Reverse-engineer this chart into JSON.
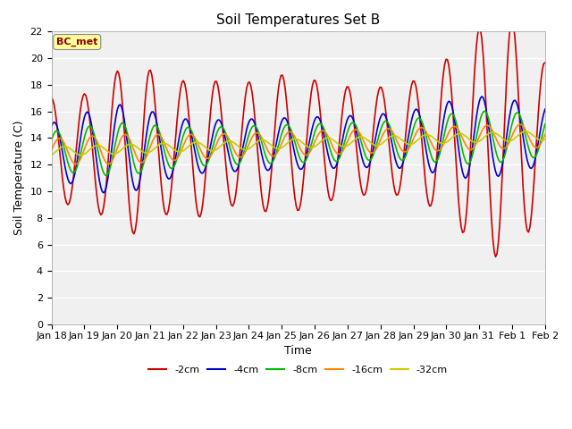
{
  "title": "Soil Temperatures Set B",
  "xlabel": "Time",
  "ylabel": "Soil Temperature (C)",
  "ylim": [
    0,
    22
  ],
  "yticks": [
    0,
    2,
    4,
    6,
    8,
    10,
    12,
    14,
    16,
    18,
    20,
    22
  ],
  "annotation": "BC_met",
  "annotation_color": "#8B0000",
  "annotation_bg": "#FFFF99",
  "fig_bg": "#FFFFFF",
  "plot_bg": "#F0F0F0",
  "grid_color": "#FFFFFF",
  "series_colors": {
    "-2cm": "#CC0000",
    "-4cm": "#0000CC",
    "-8cm": "#00BB00",
    "-16cm": "#FF8800",
    "-32cm": "#CCCC00"
  },
  "xtick_labels": [
    "Jan 18",
    "Jan 19",
    "Jan 20",
    "Jan 21",
    "Jan 22",
    "Jan 23",
    "Jan 24",
    "Jan 25",
    "Jan 26",
    "Jan 27",
    "Jan 28",
    "Jan 29",
    "Jan 30",
    "Jan 31",
    "Feb 1",
    "Feb 2"
  ],
  "n_ticks": 16
}
